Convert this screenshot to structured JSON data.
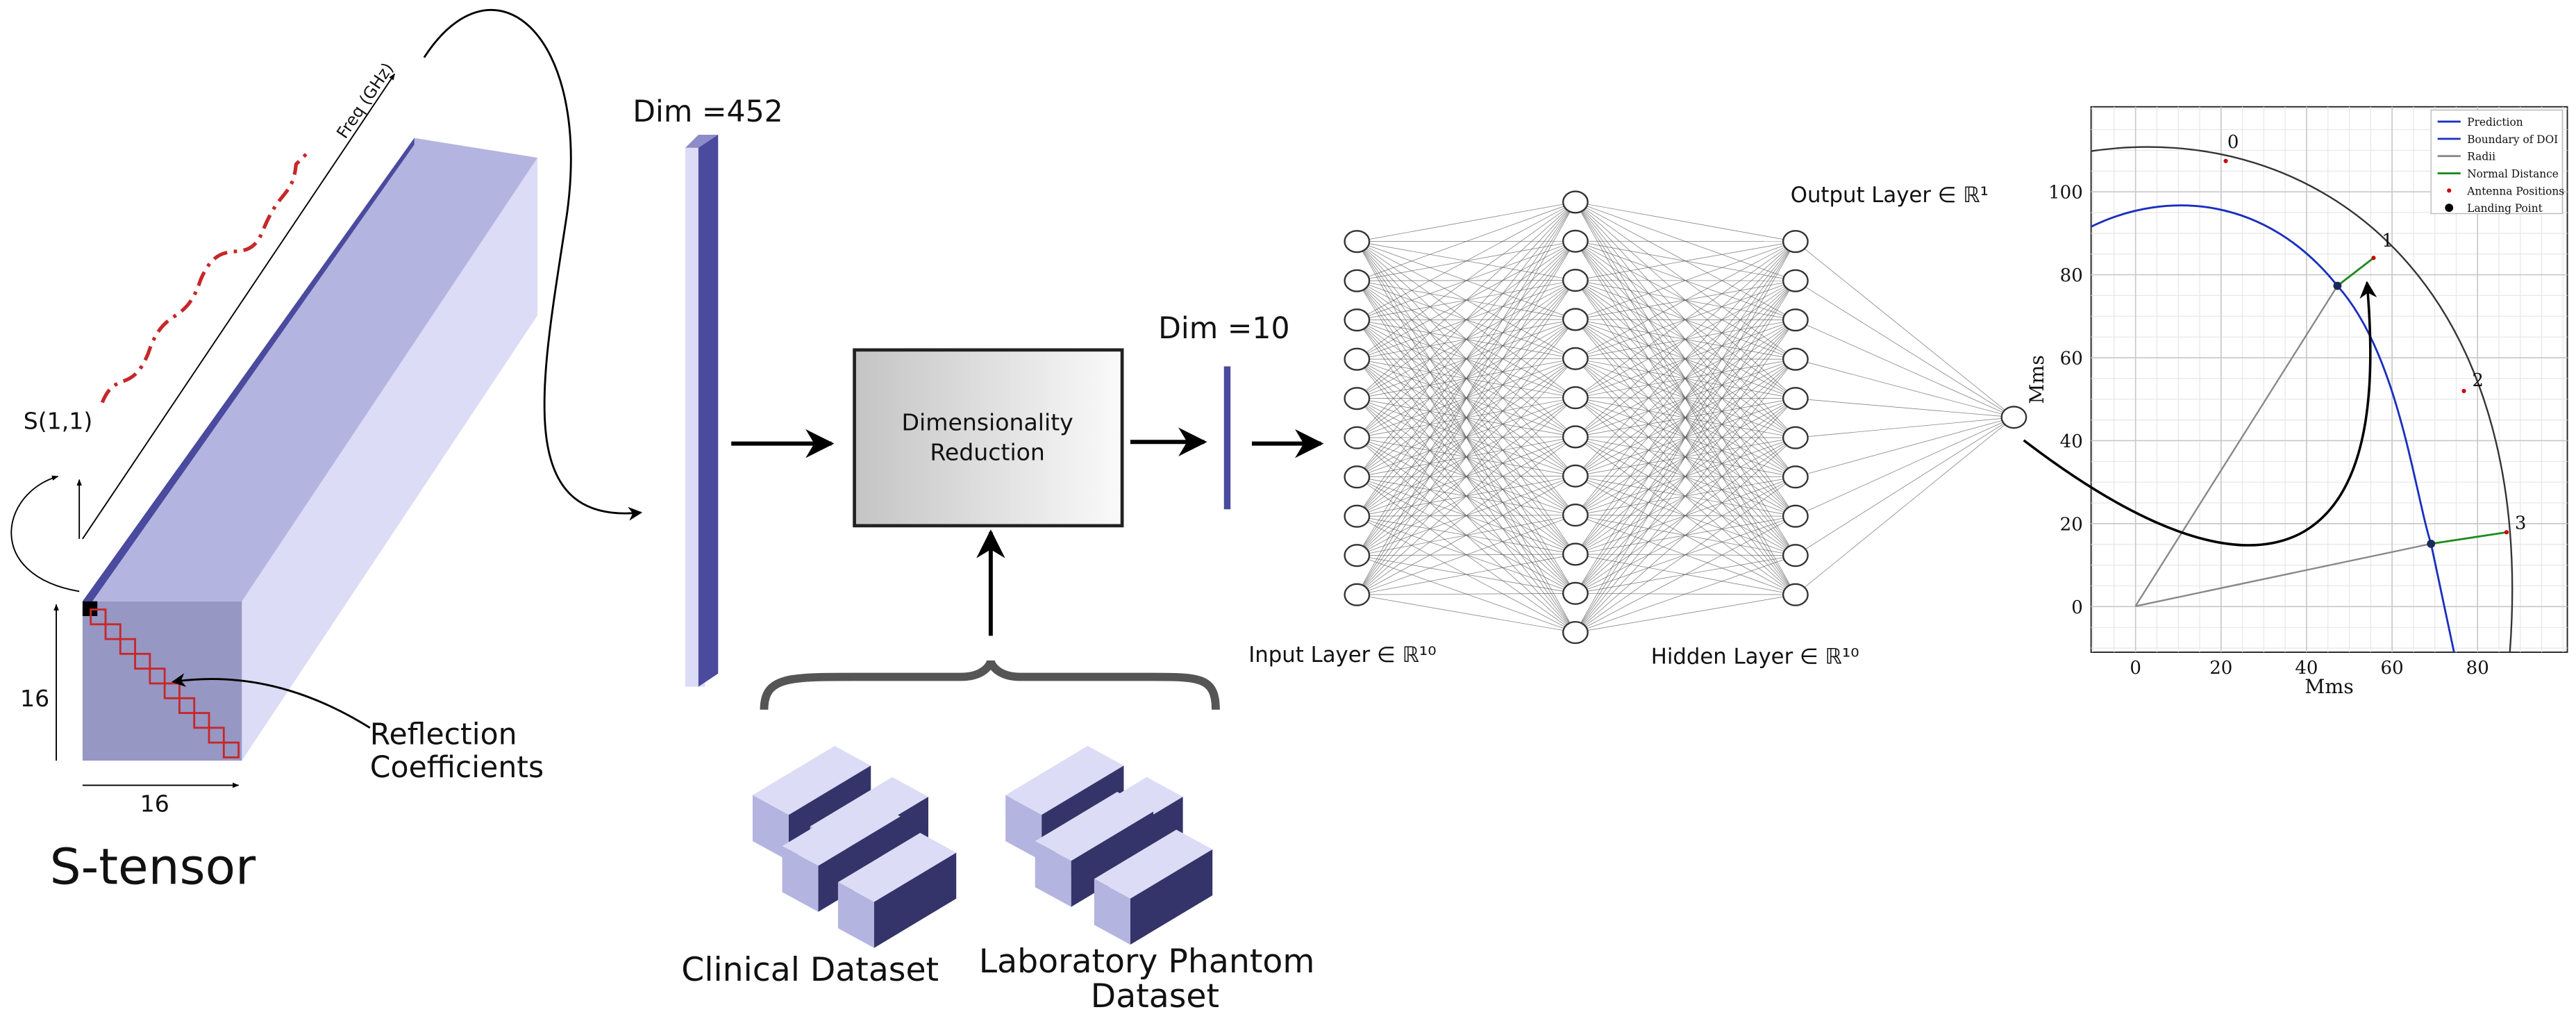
{
  "title": "S-tensor",
  "tensor": {
    "y_label": "S(1,1)",
    "freq_label": "Freq (GHz)",
    "dim_left": "16",
    "dim_bottom": "16",
    "reflection": [
      "Reflection",
      "Coefficients"
    ]
  },
  "bar1": "Dim =452",
  "reduction": [
    "Dimensionality",
    "Reduction"
  ],
  "bar2": "Dim =10",
  "datasets": {
    "clinical": "Clinical Dataset",
    "phantom": [
      "Laboratory Phantom",
      "Dataset"
    ]
  },
  "network": {
    "input": "Input Layer ∈ ℝ¹⁰",
    "hidden": "Hidden Layer ∈ ℝ¹⁰",
    "output": "Output Layer ∈ ℝ¹"
  },
  "plot": {
    "xlabel": "Mms",
    "ylabel": "Mms",
    "xlim": [
      -10.4,
      101
    ],
    "ylim": [
      -11,
      120.5
    ],
    "xticks": [
      0,
      20,
      40,
      60,
      80
    ],
    "yticks": [
      0,
      20,
      40,
      60,
      80,
      100
    ],
    "legend": [
      "Prediction",
      "Boundary of DOI",
      "Radii",
      "Normal Distance",
      "Antenna Positions",
      "Landing Point"
    ],
    "antennas": [
      "0",
      "1",
      "2",
      "3"
    ]
  }
}
